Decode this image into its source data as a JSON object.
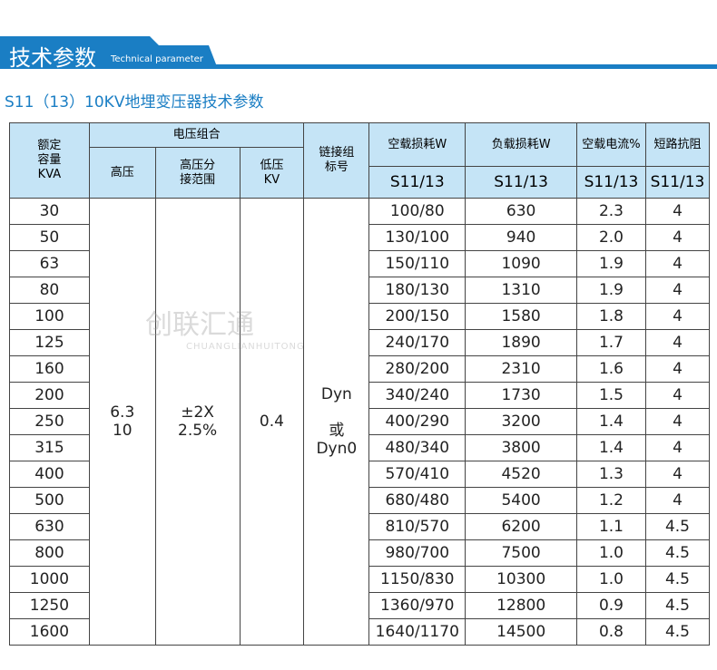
{
  "banner": {
    "title": "技术参数",
    "subtitle": "Technical parameter"
  },
  "subtitle": "S11（13）10KV地埋变压器技术参数",
  "headers": {
    "capacity": "额定\n容量\nKVA",
    "voltage_group": "电压组合",
    "high": "高压",
    "tap": "高压分\n接范围",
    "low": "低压\nKV",
    "connection": "链接组\n标号",
    "noload_loss": "空载损耗W",
    "load_loss": "负载损耗W",
    "noload_current": "空载电流%",
    "impedance": "短路抗阻",
    "model": "S11/13"
  },
  "merged": {
    "high": "6.3\n10",
    "tap": "±2X\n2.5%",
    "low": "0.4",
    "connection": "Dyn\n\n或\nDyn0"
  },
  "rows": [
    [
      "30",
      "100/80",
      "630",
      "2.3",
      "4"
    ],
    [
      "50",
      "130/100",
      "940",
      "2.0",
      "4"
    ],
    [
      "63",
      "150/110",
      "1090",
      "1.9",
      "4"
    ],
    [
      "80",
      "180/130",
      "1310",
      "1.9",
      "4"
    ],
    [
      "100",
      "200/150",
      "1580",
      "1.8",
      "4"
    ],
    [
      "125",
      "240/170",
      "1890",
      "1.7",
      "4"
    ],
    [
      "160",
      "280/200",
      "2310",
      "1.6",
      "4"
    ],
    [
      "200",
      "340/240",
      "1730",
      "1.5",
      "4"
    ],
    [
      "250",
      "400/290",
      "3200",
      "1.4",
      "4"
    ],
    [
      "315",
      "480/340",
      "3800",
      "1.4",
      "4"
    ],
    [
      "400",
      "570/410",
      "4520",
      "1.3",
      "4"
    ],
    [
      "500",
      "680/480",
      "5400",
      "1.2",
      "4"
    ],
    [
      "630",
      "810/570",
      "6200",
      "1.1",
      "4.5"
    ],
    [
      "800",
      "980/700",
      "7500",
      "1.0",
      "4.5"
    ],
    [
      "1000",
      "1150/830",
      "10300",
      "1.0",
      "4.5"
    ],
    [
      "1250",
      "1360/970",
      "12800",
      "0.9",
      "4.5"
    ],
    [
      "1600",
      "1640/1170",
      "14500",
      "0.8",
      "4.5"
    ]
  ],
  "watermark": {
    "name": "创联汇通",
    "latin": "CHUANGLIANHUITONG"
  }
}
